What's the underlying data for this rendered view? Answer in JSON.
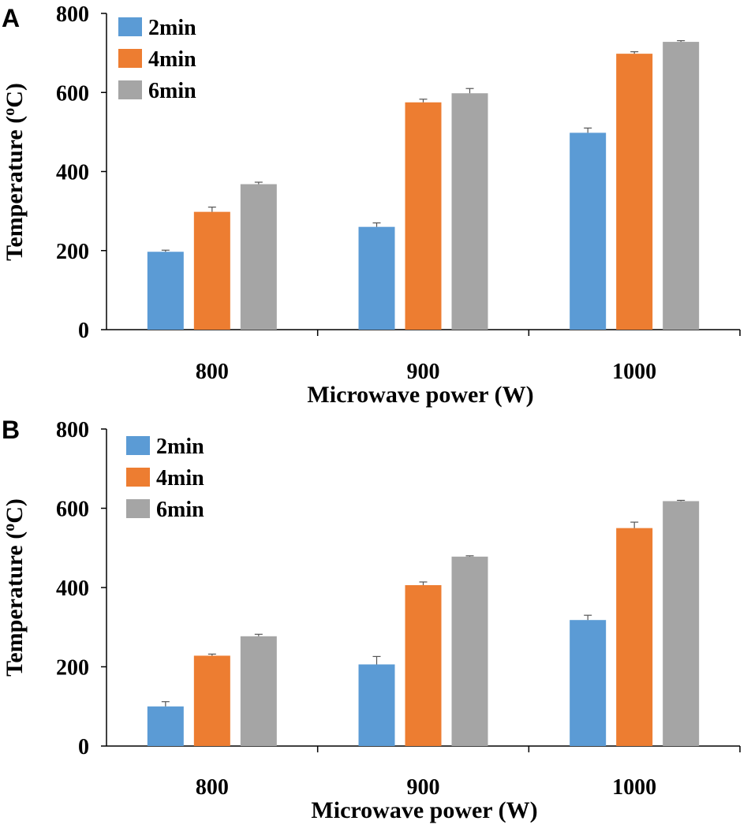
{
  "colors": {
    "2min": "#5b9bd5",
    "4min": "#ed7d31",
    "6min": "#a5a5a5"
  },
  "chart_data": [
    {
      "panel": "A",
      "type": "bar",
      "categories": [
        "800",
        "900",
        "1000"
      ],
      "xlabel": "Microwave power (W)",
      "ylabel_prefix": "Temperature (",
      "ylabel_sup": "o",
      "ylabel_suffix": "C)",
      "ylim": [
        0,
        800
      ],
      "yticks": [
        "0",
        "200",
        "400",
        "600",
        "800"
      ],
      "legend_position": "top-left",
      "series": [
        {
          "name": "2min",
          "values": [
            197,
            260,
            498
          ],
          "errors": [
            4,
            10,
            12
          ]
        },
        {
          "name": "4min",
          "values": [
            298,
            575,
            698
          ],
          "errors": [
            12,
            8,
            5
          ]
        },
        {
          "name": "6min",
          "values": [
            368,
            598,
            728
          ],
          "errors": [
            5,
            12,
            3
          ]
        }
      ]
    },
    {
      "panel": "B",
      "type": "bar",
      "categories": [
        "800",
        "900",
        "1000"
      ],
      "xlabel": "Microwave power (W)",
      "ylabel_prefix": "Temperature (",
      "ylabel_sup": "o",
      "ylabel_suffix": "C)",
      "ylim": [
        0,
        800
      ],
      "yticks": [
        "0",
        "200",
        "400",
        "600",
        "800"
      ],
      "legend_position": "top-left",
      "series": [
        {
          "name": "2min",
          "values": [
            100,
            206,
            318
          ],
          "errors": [
            12,
            20,
            12
          ]
        },
        {
          "name": "4min",
          "values": [
            228,
            406,
            550
          ],
          "errors": [
            4,
            8,
            15
          ]
        },
        {
          "name": "6min",
          "values": [
            277,
            478,
            618
          ],
          "errors": [
            5,
            2,
            2
          ]
        }
      ]
    }
  ]
}
